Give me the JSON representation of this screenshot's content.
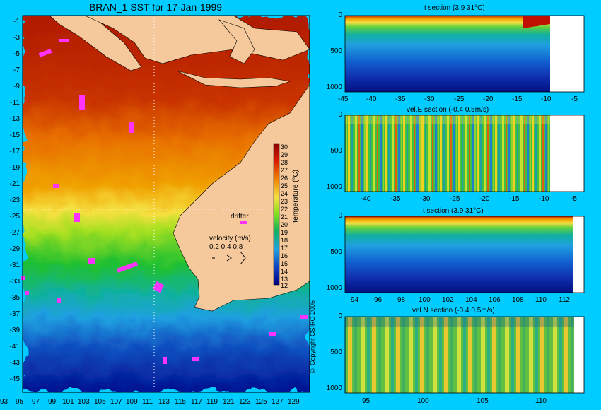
{
  "map": {
    "title": "BRAN_1 SST for 17-Jan-1999",
    "lat_ticks": [
      "-1",
      "-3",
      "-5",
      "-7",
      "-9",
      "-11",
      "-13",
      "-15",
      "-17",
      "-19",
      "-21",
      "-23",
      "-25",
      "-27",
      "-29",
      "-31",
      "-33",
      "-35",
      "-37",
      "-39",
      "-41",
      "-43",
      "-45"
    ],
    "lon_ticks": [
      "93",
      "95",
      "97",
      "99",
      "101",
      "103",
      "105",
      "107",
      "109",
      "111",
      "113",
      "115",
      "117",
      "119",
      "121",
      "123",
      "125",
      "127",
      "129"
    ],
    "colorbar_ticks": [
      "30",
      "29",
      "28",
      "27",
      "26",
      "25",
      "24",
      "23",
      "22",
      "21",
      "20",
      "19",
      "18",
      "17",
      "16",
      "15",
      "14",
      "13",
      "12"
    ],
    "colorbar_title": "temperature (°C)",
    "drifter_label": "drifter",
    "velocity_label": "velocity (m/s)",
    "velocity_scale": "0.2 0.4 0.8",
    "copyright": "© Copyright CSIRO 2005",
    "colors": {
      "land": "#f5c99b",
      "drifter": "#ff33ff",
      "background": "#00ccff"
    }
  },
  "sections": [
    {
      "title": "t section (3.9      31°C)",
      "x_ticks": [
        "-45",
        "-40",
        "-35",
        "-30",
        "-25",
        "-20",
        "-15",
        "-10",
        "-5"
      ],
      "y_ticks": [
        "0",
        "500",
        "1000"
      ]
    },
    {
      "title": "vel.E section (-0.4      0.5m/s)",
      "x_ticks": [
        "-40",
        "-35",
        "-30",
        "-25",
        "-20",
        "-15",
        "-10",
        "-5"
      ],
      "y_ticks": [
        "0",
        "500",
        "1000"
      ]
    },
    {
      "title": "t section (3.9      31°C)",
      "x_ticks": [
        "94",
        "96",
        "98",
        "100",
        "102",
        "104",
        "106",
        "108",
        "110",
        "112"
      ],
      "y_ticks": [
        "0",
        "500",
        "1000"
      ]
    },
    {
      "title": "vel.N section (-0.4      0.5m/s)",
      "x_ticks": [
        "95",
        "100",
        "105",
        "110"
      ],
      "y_ticks": [
        "0",
        "500",
        "1000"
      ]
    }
  ]
}
